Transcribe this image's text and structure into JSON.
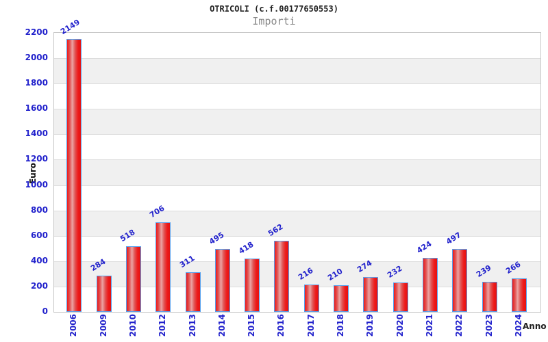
{
  "title": "OTRICOLI (c.f.00177650553)",
  "subtitle": "Importi",
  "y_axis_title": "Euro",
  "x_axis_title": "Anno",
  "chart_data": {
    "type": "bar",
    "title": "OTRICOLI (c.f.00177650553)",
    "subtitle": "Importi",
    "xlabel": "Anno",
    "ylabel": "Euro",
    "categories": [
      "2006",
      "2009",
      "2010",
      "2012",
      "2013",
      "2014",
      "2015",
      "2016",
      "2017",
      "2018",
      "2019",
      "2020",
      "2021",
      "2022",
      "2023",
      "2024"
    ],
    "values": [
      2149,
      284,
      518,
      706,
      311,
      495,
      418,
      562,
      216,
      210,
      274,
      232,
      424,
      497,
      239,
      266
    ],
    "ylim": [
      0,
      2200
    ],
    "yticks": [
      0,
      200,
      400,
      600,
      800,
      1000,
      1200,
      1400,
      1600,
      1800,
      2000,
      2200
    ],
    "grid": "horizontal-bands",
    "legend_position": "none",
    "colors": {
      "bar_fill": "#ee1a1a",
      "bar_highlight": "#eca4a4",
      "bar_edge": "#55a0ee",
      "tick_label": "#2222cc",
      "value_label": "#2222cc",
      "band_gray": "#f0f0f0",
      "band_white": "#ffffff",
      "gridline": "#dcdcdc",
      "axis_title_color": "#111111",
      "subtitle_color": "#888888",
      "title_color": "#222222"
    }
  }
}
